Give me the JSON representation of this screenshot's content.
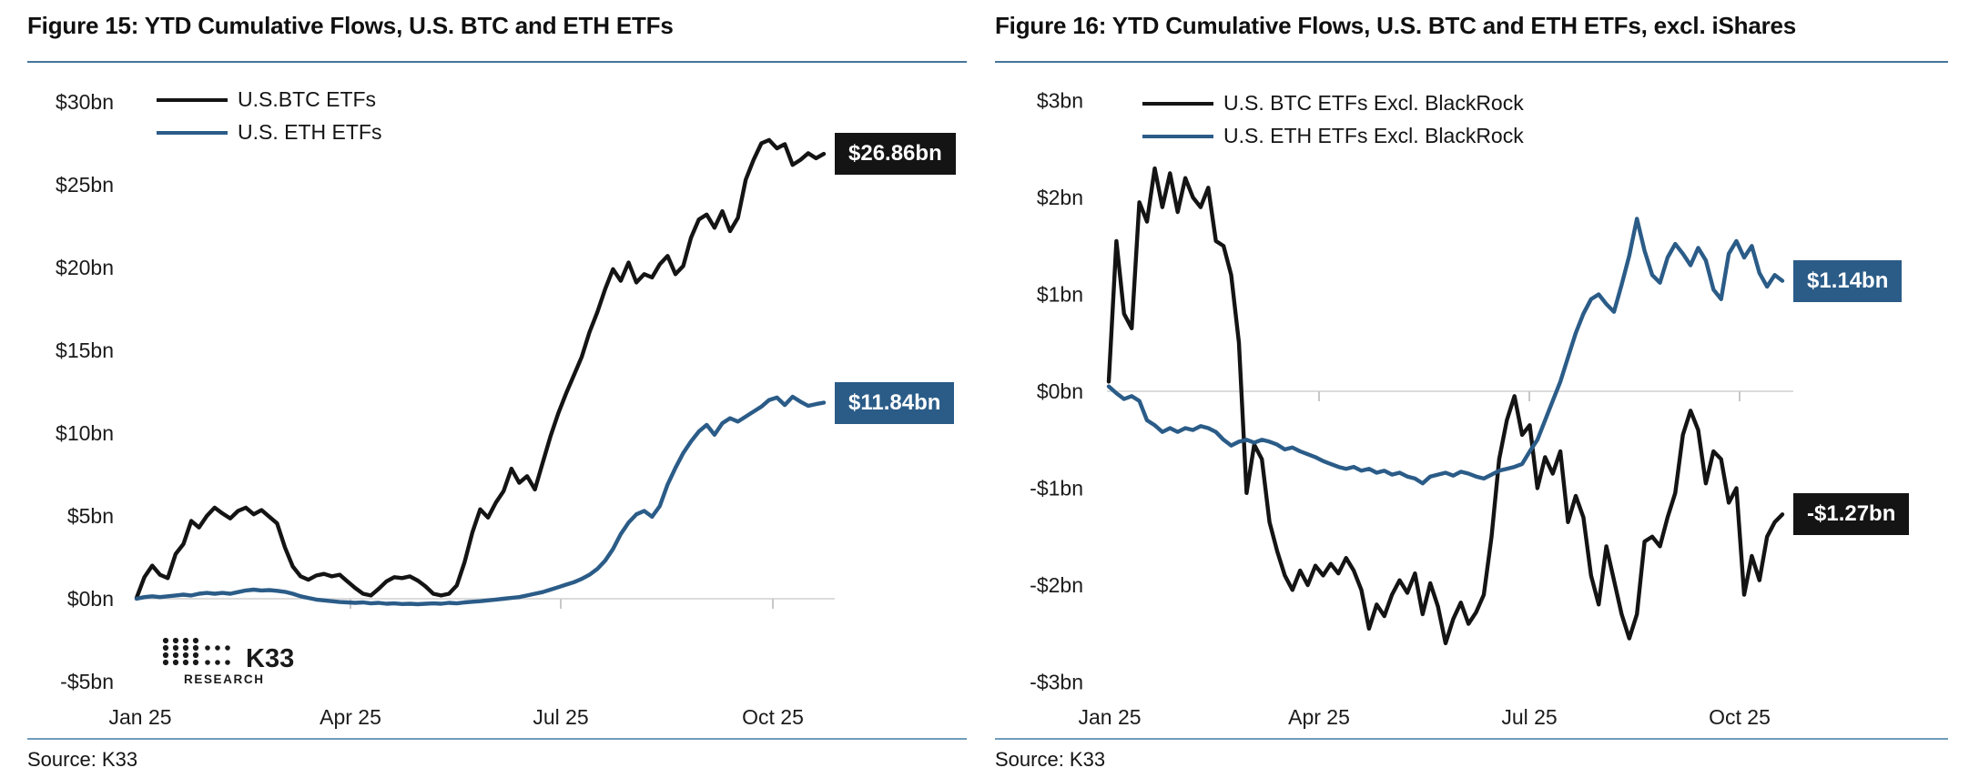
{
  "source_label": "Source: K33",
  "logo": {
    "text": "K33",
    "subtext": "RESEARCH"
  },
  "colors": {
    "btc_line": "#141414",
    "eth_line": "#2B5C88",
    "title_underline": "#47759A",
    "bottom_rule": "#6F9CBA",
    "zero_line": "#DCDCDC",
    "axis_tick": "#C8C8C8",
    "text": "#1B1B1B"
  },
  "chart_data": [
    {
      "type": "line",
      "title": "Figure 15: YTD Cumulative Flows, U.S. BTC and ETH ETFs",
      "legend_position": "top-left",
      "grid": "zero-line-only",
      "xlabel": "",
      "ylabel": "",
      "ylim": [
        -5,
        30
      ],
      "x_ticks": [
        "Jan 25",
        "Apr 25",
        "Jul 25",
        "Oct 25"
      ],
      "y_ticks": [
        {
          "label": "$30bn",
          "value": 30
        },
        {
          "label": "$25bn",
          "value": 25
        },
        {
          "label": "$20bn",
          "value": 20
        },
        {
          "label": "$15bn",
          "value": 15
        },
        {
          "label": "$10bn",
          "value": 10
        },
        {
          "label": "$5bn",
          "value": 5
        },
        {
          "label": "$0bn",
          "value": 0
        },
        {
          "label": "-$5bn",
          "value": -5
        }
      ],
      "series": [
        {
          "name": "U.S.BTC ETFs",
          "color": "#141414",
          "end_label": "$26.86bn",
          "end_value": 26.86,
          "values": [
            0.05,
            1.3,
            2.0,
            1.45,
            1.25,
            2.7,
            3.3,
            4.7,
            4.3,
            5.0,
            5.5,
            5.15,
            4.85,
            5.3,
            5.5,
            5.1,
            5.35,
            4.95,
            4.55,
            3.1,
            1.95,
            1.35,
            1.15,
            1.4,
            1.5,
            1.35,
            1.45,
            1.05,
            0.65,
            0.3,
            0.2,
            0.6,
            1.05,
            1.3,
            1.25,
            1.35,
            1.1,
            0.75,
            0.3,
            0.2,
            0.3,
            0.8,
            2.2,
            4.0,
            5.4,
            4.9,
            5.8,
            6.5,
            7.85,
            7.0,
            7.4,
            6.6,
            8.2,
            9.8,
            11.2,
            12.4,
            13.5,
            14.6,
            16.1,
            17.3,
            18.7,
            19.9,
            19.2,
            20.3,
            19.1,
            19.6,
            19.4,
            20.2,
            20.7,
            19.6,
            20.1,
            21.8,
            22.9,
            23.2,
            22.4,
            23.4,
            22.2,
            23.0,
            25.3,
            26.5,
            27.5,
            27.7,
            27.2,
            27.45,
            26.2,
            26.5,
            26.9,
            26.6,
            26.86
          ]
        },
        {
          "name": "U.S. ETH ETFs",
          "color": "#2B5C88",
          "end_label": "$11.84bn",
          "end_value": 11.84,
          "values": [
            0.0,
            0.1,
            0.15,
            0.1,
            0.15,
            0.2,
            0.25,
            0.2,
            0.3,
            0.35,
            0.3,
            0.35,
            0.3,
            0.4,
            0.5,
            0.55,
            0.5,
            0.52,
            0.48,
            0.42,
            0.3,
            0.15,
            0.05,
            -0.05,
            -0.1,
            -0.15,
            -0.2,
            -0.22,
            -0.25,
            -0.22,
            -0.28,
            -0.25,
            -0.3,
            -0.28,
            -0.32,
            -0.3,
            -0.33,
            -0.3,
            -0.28,
            -0.3,
            -0.25,
            -0.28,
            -0.22,
            -0.18,
            -0.15,
            -0.1,
            -0.05,
            0.0,
            0.05,
            0.1,
            0.2,
            0.3,
            0.4,
            0.55,
            0.7,
            0.85,
            1.0,
            1.2,
            1.45,
            1.8,
            2.3,
            3.0,
            3.9,
            4.6,
            5.1,
            5.3,
            4.95,
            5.6,
            6.9,
            7.9,
            8.8,
            9.5,
            10.1,
            10.5,
            9.9,
            10.6,
            10.9,
            10.7,
            11.0,
            11.3,
            11.6,
            12.0,
            12.15,
            11.7,
            12.2,
            11.9,
            11.65,
            11.75,
            11.84
          ]
        }
      ]
    },
    {
      "type": "line",
      "title": "Figure 16: YTD Cumulative Flows, U.S. BTC and ETH ETFs, excl. iShares",
      "legend_position": "top-left",
      "grid": "zero-line-only",
      "xlabel": "",
      "ylabel": "",
      "ylim": [
        -3,
        3
      ],
      "x_ticks": [
        "Jan 25",
        "Apr 25",
        "Jul 25",
        "Oct 25"
      ],
      "y_ticks": [
        {
          "label": "$3bn",
          "value": 3
        },
        {
          "label": "$2bn",
          "value": 2
        },
        {
          "label": "$1bn",
          "value": 1
        },
        {
          "label": "$0bn",
          "value": 0
        },
        {
          "label": "-$1bn",
          "value": -1
        },
        {
          "label": "-$2bn",
          "value": -2
        },
        {
          "label": "-$3bn",
          "value": -3
        }
      ],
      "series": [
        {
          "name": "U.S. BTC ETFs Excl. BlackRock",
          "color": "#141414",
          "end_label": "-$1.27bn",
          "end_value": -1.27,
          "values": [
            0.1,
            1.55,
            0.8,
            0.65,
            1.95,
            1.75,
            2.3,
            1.9,
            2.25,
            1.85,
            2.2,
            2.0,
            1.9,
            2.1,
            1.55,
            1.5,
            1.2,
            0.5,
            -1.05,
            -0.55,
            -0.7,
            -1.35,
            -1.65,
            -1.9,
            -2.05,
            -1.85,
            -2.0,
            -1.8,
            -1.9,
            -1.78,
            -1.88,
            -1.72,
            -1.85,
            -2.05,
            -2.45,
            -2.2,
            -2.32,
            -2.1,
            -1.95,
            -2.08,
            -1.88,
            -2.3,
            -1.98,
            -2.22,
            -2.6,
            -2.35,
            -2.18,
            -2.4,
            -2.28,
            -2.1,
            -1.5,
            -0.7,
            -0.3,
            -0.05,
            -0.45,
            -0.35,
            -1.0,
            -0.68,
            -0.85,
            -0.62,
            -1.35,
            -1.08,
            -1.3,
            -1.9,
            -2.2,
            -1.6,
            -1.95,
            -2.3,
            -2.55,
            -2.3,
            -1.55,
            -1.5,
            -1.6,
            -1.3,
            -1.05,
            -0.45,
            -0.2,
            -0.4,
            -0.95,
            -0.62,
            -0.7,
            -1.15,
            -1.0,
            -2.1,
            -1.7,
            -1.95,
            -1.5,
            -1.35,
            -1.27
          ]
        },
        {
          "name": "U.S. ETH ETFs Excl. BlackRock",
          "color": "#2B5C88",
          "end_label": "$1.14bn",
          "end_value": 1.14,
          "values": [
            0.05,
            -0.02,
            -0.08,
            -0.05,
            -0.1,
            -0.3,
            -0.35,
            -0.42,
            -0.38,
            -0.42,
            -0.38,
            -0.4,
            -0.36,
            -0.38,
            -0.42,
            -0.5,
            -0.56,
            -0.52,
            -0.5,
            -0.53,
            -0.5,
            -0.52,
            -0.55,
            -0.6,
            -0.58,
            -0.62,
            -0.65,
            -0.68,
            -0.72,
            -0.75,
            -0.78,
            -0.8,
            -0.78,
            -0.82,
            -0.8,
            -0.84,
            -0.82,
            -0.86,
            -0.84,
            -0.88,
            -0.9,
            -0.95,
            -0.88,
            -0.86,
            -0.84,
            -0.87,
            -0.83,
            -0.85,
            -0.88,
            -0.9,
            -0.86,
            -0.82,
            -0.8,
            -0.78,
            -0.75,
            -0.62,
            -0.5,
            -0.3,
            -0.1,
            0.1,
            0.35,
            0.6,
            0.8,
            0.95,
            1.0,
            0.9,
            0.82,
            1.1,
            1.4,
            1.78,
            1.45,
            1.2,
            1.12,
            1.38,
            1.52,
            1.42,
            1.3,
            1.48,
            1.35,
            1.05,
            0.95,
            1.42,
            1.55,
            1.38,
            1.5,
            1.22,
            1.08,
            1.2,
            1.14
          ]
        }
      ]
    }
  ]
}
